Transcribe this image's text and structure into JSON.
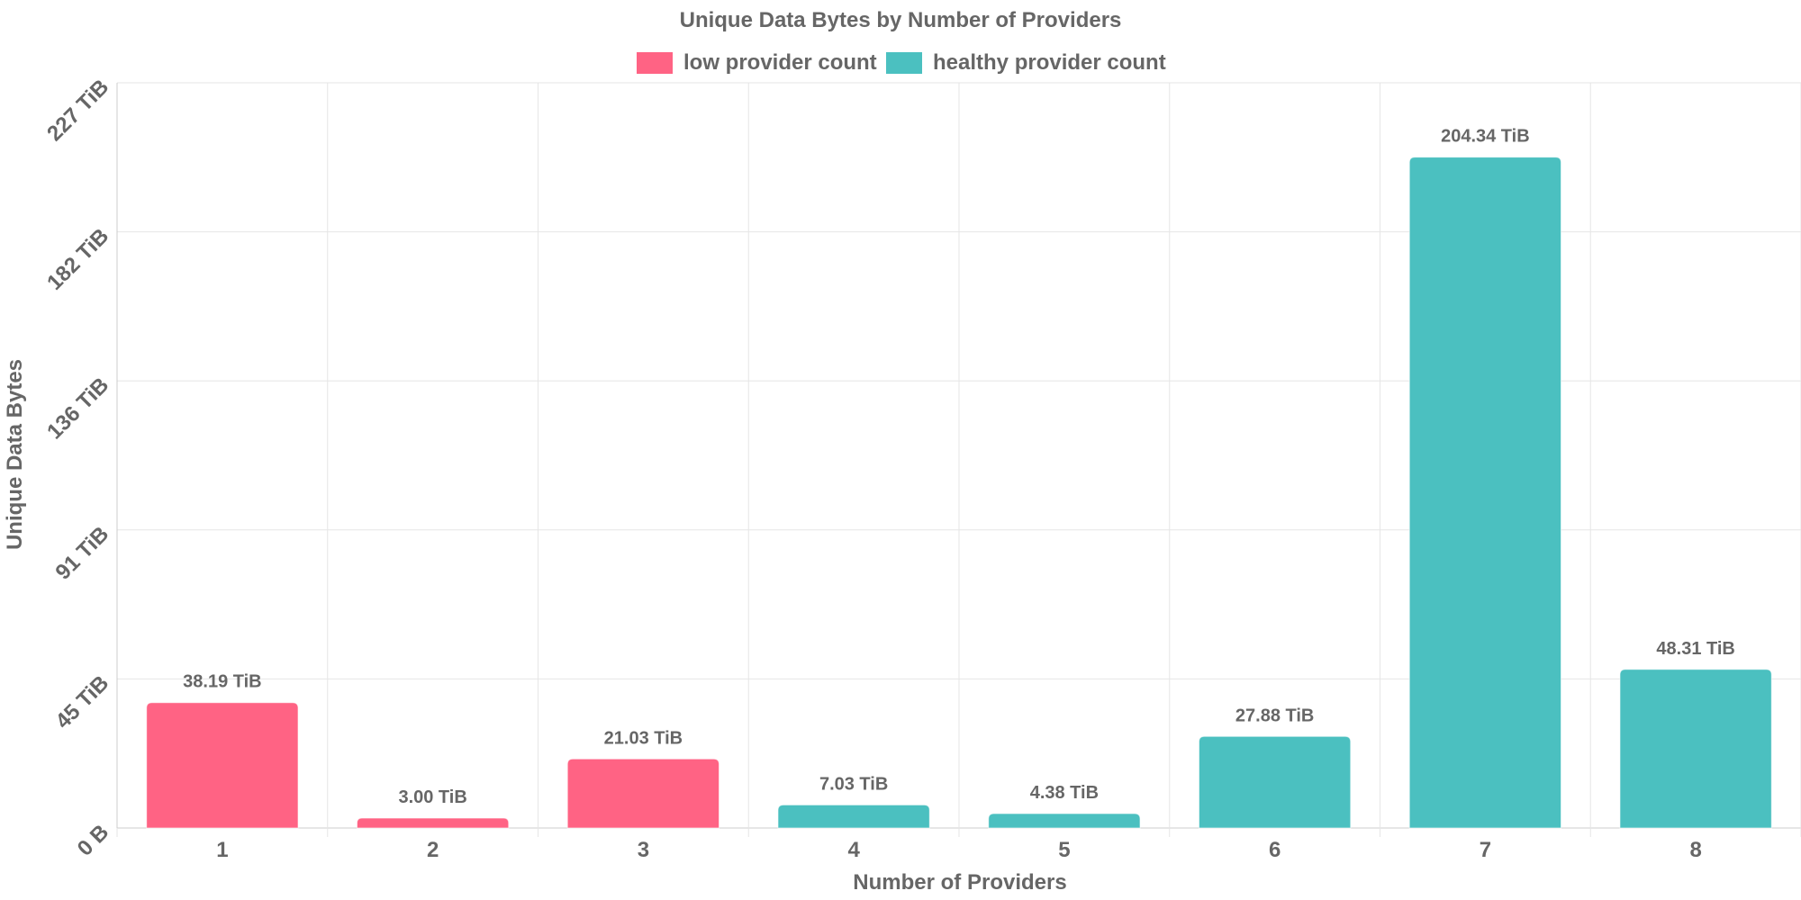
{
  "chart_data": {
    "type": "bar",
    "title": "Unique Data Bytes by Number of Providers",
    "xlabel": "Number of Providers",
    "ylabel": "Unique Data Bytes",
    "categories": [
      "1",
      "2",
      "3",
      "4",
      "5",
      "6",
      "7",
      "8"
    ],
    "values": [
      38.19,
      3.0,
      21.03,
      7.03,
      4.38,
      27.88,
      204.34,
      48.31
    ],
    "value_labels": [
      "38.19 TiB",
      "3.00 TiB",
      "21.03 TiB",
      "7.03 TiB",
      "4.38 TiB",
      "27.88 TiB",
      "204.34 TiB",
      "48.31 TiB"
    ],
    "value_unit": "TiB",
    "series_assignment": [
      0,
      0,
      0,
      1,
      1,
      1,
      1,
      1
    ],
    "legend": [
      {
        "name": "low provider count",
        "color": "#ff6384"
      },
      {
        "name": "healthy provider count",
        "color": "#4bc0c0"
      }
    ],
    "legend_position": "top",
    "ylim": [
      0,
      227
    ],
    "y_ticks": [
      {
        "value": 0,
        "label": "0 B"
      },
      {
        "value": 45.4,
        "label": "45 TiB"
      },
      {
        "value": 90.8,
        "label": "91 TiB"
      },
      {
        "value": 136.2,
        "label": "136 TiB"
      },
      {
        "value": 181.6,
        "label": "182 TiB"
      },
      {
        "value": 227,
        "label": "227 TiB"
      }
    ],
    "grid": true
  }
}
